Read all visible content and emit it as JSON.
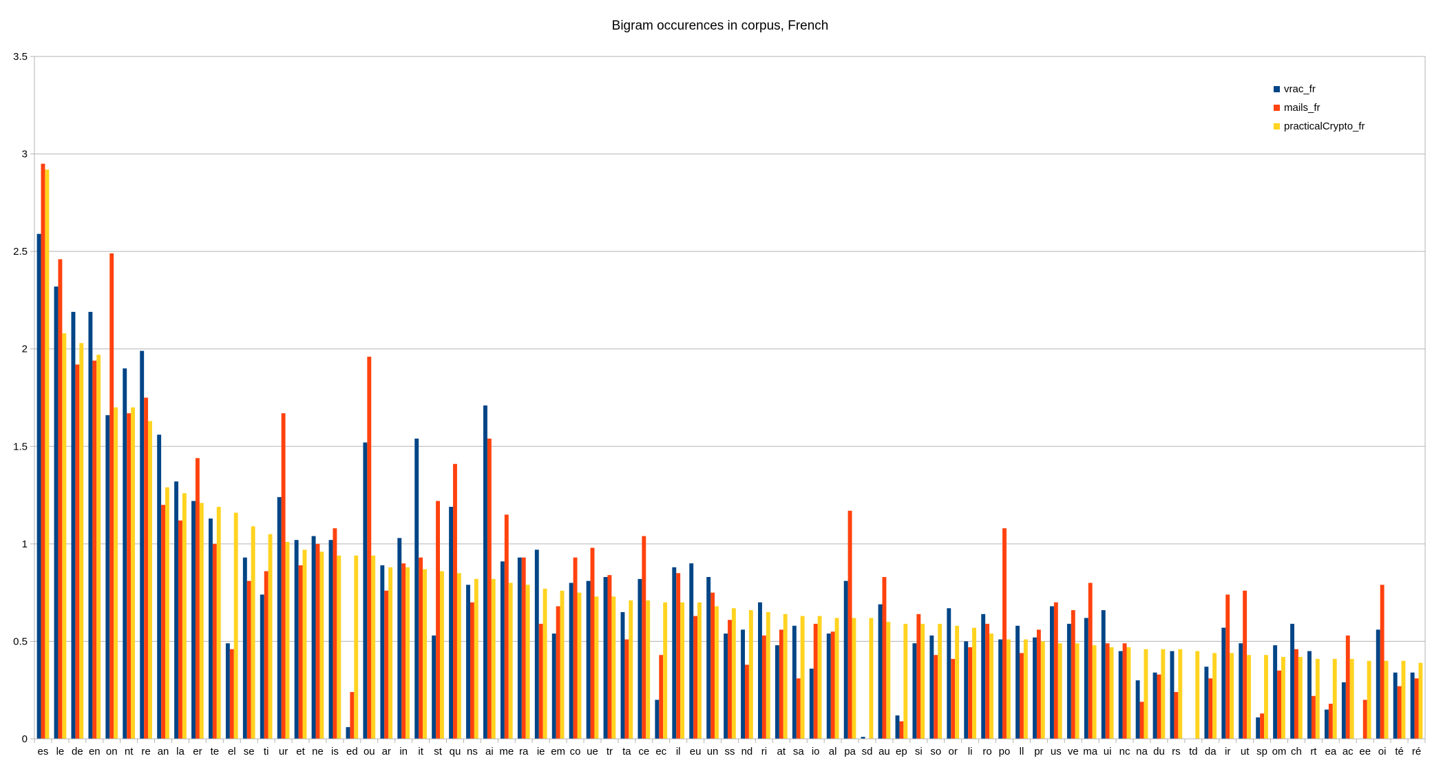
{
  "chart_data": {
    "type": "bar",
    "title": "Bigram occurences in corpus, French",
    "xlabel": "",
    "ylabel": "",
    "ylim": [
      0,
      3.5
    ],
    "yticks": [
      "0",
      "0.5",
      "1",
      "1.5",
      "2",
      "2.5",
      "3",
      "3.5"
    ],
    "grid": true,
    "legend_position": "top-right",
    "categories": [
      "es",
      "le",
      "de",
      "en",
      "on",
      "nt",
      "re",
      "an",
      "la",
      "er",
      "te",
      "el",
      "se",
      "ti",
      "ur",
      "et",
      "ne",
      "is",
      "ed",
      "ou",
      "ar",
      "in",
      "it",
      "st",
      "qu",
      "ns",
      "ai",
      "me",
      "ra",
      "ie",
      "em",
      "co",
      "ue",
      "tr",
      "ta",
      "ce",
      "ec",
      "il",
      "eu",
      "un",
      "ss",
      "nd",
      "ri",
      "at",
      "sa",
      "io",
      "al",
      "pa",
      "sd",
      "au",
      "ep",
      "si",
      "so",
      "or",
      "li",
      "ro",
      "po",
      "ll",
      "pr",
      "us",
      "ve",
      "ma",
      "ui",
      "nc",
      "na",
      "du",
      "rs",
      "td",
      "da",
      "ir",
      "ut",
      "sp",
      "om",
      "ch",
      "rt",
      "ea",
      "ac",
      "ee",
      "oi",
      "té",
      "ré"
    ],
    "series": [
      {
        "name": "vrac_fr",
        "color": "#004586",
        "values": [
          2.59,
          2.32,
          2.19,
          2.19,
          1.66,
          1.9,
          1.99,
          1.56,
          1.32,
          1.22,
          1.13,
          0.49,
          0.93,
          0.74,
          1.24,
          1.02,
          1.04,
          1.02,
          0.06,
          1.52,
          0.89,
          1.03,
          1.54,
          0.53,
          1.19,
          0.79,
          1.71,
          0.91,
          0.93,
          0.97,
          0.54,
          0.8,
          0.81,
          0.83,
          0.65,
          0.82,
          0.2,
          0.88,
          0.9,
          0.83,
          0.54,
          0.56,
          0.7,
          0.48,
          0.58,
          0.36,
          0.54,
          0.81,
          0.01,
          0.69,
          0.12,
          0.49,
          0.53,
          0.67,
          0.5,
          0.64,
          0.51,
          0.58,
          0.52,
          0.68,
          0.59,
          0.62,
          0.66,
          0.45,
          0.3,
          0.34,
          0.45,
          0.0,
          0.37,
          0.57,
          0.49,
          0.11,
          0.48,
          0.59,
          0.45,
          0.15,
          0.29,
          0.0,
          0.56,
          0.34,
          0.34
        ]
      },
      {
        "name": "mails_fr",
        "color": "#ff420e",
        "values": [
          2.95,
          2.46,
          1.92,
          1.94,
          2.49,
          1.67,
          1.75,
          1.2,
          1.12,
          1.44,
          1.0,
          0.46,
          0.81,
          0.86,
          1.67,
          0.89,
          1.0,
          1.08,
          0.24,
          1.96,
          0.76,
          0.9,
          0.93,
          1.22,
          1.41,
          0.7,
          1.54,
          1.15,
          0.93,
          0.59,
          0.68,
          0.93,
          0.98,
          0.84,
          0.51,
          1.04,
          0.43,
          0.85,
          0.63,
          0.75,
          0.61,
          0.38,
          0.53,
          0.56,
          0.31,
          0.59,
          0.55,
          1.17,
          0.0,
          0.83,
          0.09,
          0.64,
          0.43,
          0.41,
          0.47,
          0.59,
          1.08,
          0.44,
          0.56,
          0.7,
          0.66,
          0.8,
          0.49,
          0.49,
          0.19,
          0.33,
          0.24,
          0.0,
          0.31,
          0.74,
          0.76,
          0.13,
          0.35,
          0.46,
          0.22,
          0.18,
          0.53,
          0.2,
          0.79,
          0.27,
          0.31
        ]
      },
      {
        "name": "practicalCrypto_fr",
        "color": "#ffd320",
        "values": [
          2.92,
          2.08,
          2.03,
          1.97,
          1.7,
          1.7,
          1.63,
          1.29,
          1.26,
          1.21,
          1.19,
          1.16,
          1.09,
          1.05,
          1.01,
          0.97,
          0.96,
          0.94,
          0.94,
          0.94,
          0.88,
          0.88,
          0.87,
          0.86,
          0.85,
          0.82,
          0.82,
          0.8,
          0.79,
          0.77,
          0.76,
          0.75,
          0.73,
          0.73,
          0.71,
          0.71,
          0.7,
          0.7,
          0.7,
          0.68,
          0.67,
          0.66,
          0.65,
          0.64,
          0.63,
          0.63,
          0.62,
          0.62,
          0.62,
          0.6,
          0.59,
          0.59,
          0.59,
          0.58,
          0.57,
          0.54,
          0.51,
          0.51,
          0.5,
          0.49,
          0.49,
          0.48,
          0.47,
          0.47,
          0.46,
          0.46,
          0.46,
          0.45,
          0.44,
          0.44,
          0.43,
          0.43,
          0.42,
          0.42,
          0.41,
          0.41,
          0.41,
          0.4,
          0.4,
          0.4,
          0.39
        ]
      }
    ]
  }
}
